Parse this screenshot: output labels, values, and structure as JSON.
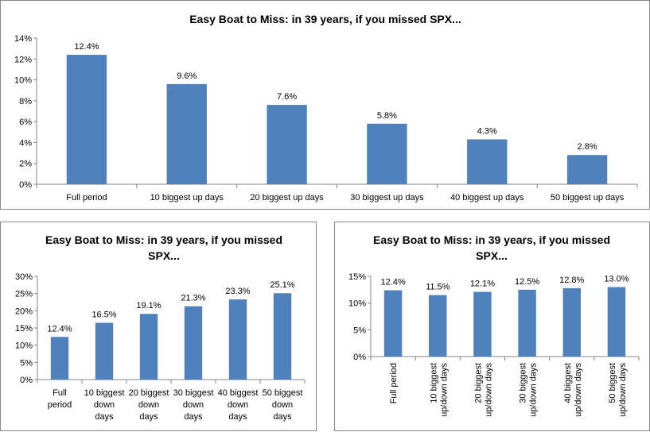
{
  "chart_data": [
    {
      "type": "bar",
      "title": "Easy Boat to Miss: in 39 years, if you missed SPX...",
      "categories": [
        "Full period",
        "10 biggest up days",
        "20 biggest up days",
        "30 biggest up days",
        "40 biggest up days",
        "50 biggest up days"
      ],
      "values": [
        12.4,
        9.6,
        7.6,
        5.8,
        4.3,
        2.8
      ],
      "data_labels": [
        "12.4%",
        "9.6%",
        "7.6%",
        "5.8%",
        "4.3%",
        "2.8%"
      ],
      "yticks": [
        "0%",
        "2%",
        "4%",
        "6%",
        "8%",
        "10%",
        "12%",
        "14%"
      ],
      "ylim": [
        0,
        14
      ],
      "bar_color": "#4F81BD",
      "grid": false,
      "legend": "none"
    },
    {
      "type": "bar",
      "title": [
        "Easy Boat to Miss: in 39 years, if you missed",
        "SPX..."
      ],
      "categories": [
        [
          "Full",
          "period"
        ],
        [
          "10 biggest",
          "down",
          "days"
        ],
        [
          "20 biggest",
          "down",
          "days"
        ],
        [
          "30 biggest",
          "down",
          "days"
        ],
        [
          "40 biggest",
          "down",
          "days"
        ],
        [
          "50 biggest",
          "down",
          "days"
        ]
      ],
      "values": [
        12.4,
        16.5,
        19.1,
        21.3,
        23.3,
        25.1
      ],
      "data_labels": [
        "12.4%",
        "16.5%",
        "19.1%",
        "21.3%",
        "23.3%",
        "25.1%"
      ],
      "yticks": [
        "0%",
        "5%",
        "10%",
        "15%",
        "20%",
        "25%",
        "30%"
      ],
      "ylim": [
        0,
        30
      ],
      "bar_color": "#4F81BD",
      "grid": false,
      "legend": "none"
    },
    {
      "type": "bar",
      "title": [
        "Easy Boat to Miss: in 39 years, if you missed",
        "SPX..."
      ],
      "categories": [
        [
          "Full period"
        ],
        [
          "10 biggest",
          "up/down days"
        ],
        [
          "20 biggest",
          "up/down days"
        ],
        [
          "30 biggest",
          "up/down days"
        ],
        [
          "40 biggest",
          "up/down days"
        ],
        [
          "50 biggest",
          "up/down days"
        ]
      ],
      "values": [
        12.4,
        11.5,
        12.1,
        12.5,
        12.8,
        13.0
      ],
      "data_labels": [
        "12.4%",
        "11.5%",
        "12.1%",
        "12.5%",
        "12.8%",
        "13.0%"
      ],
      "yticks": [
        "0%",
        "5%",
        "10%",
        "15%"
      ],
      "ylim": [
        0,
        15
      ],
      "bar_color": "#4F81BD",
      "grid": false,
      "legend": "none"
    }
  ]
}
